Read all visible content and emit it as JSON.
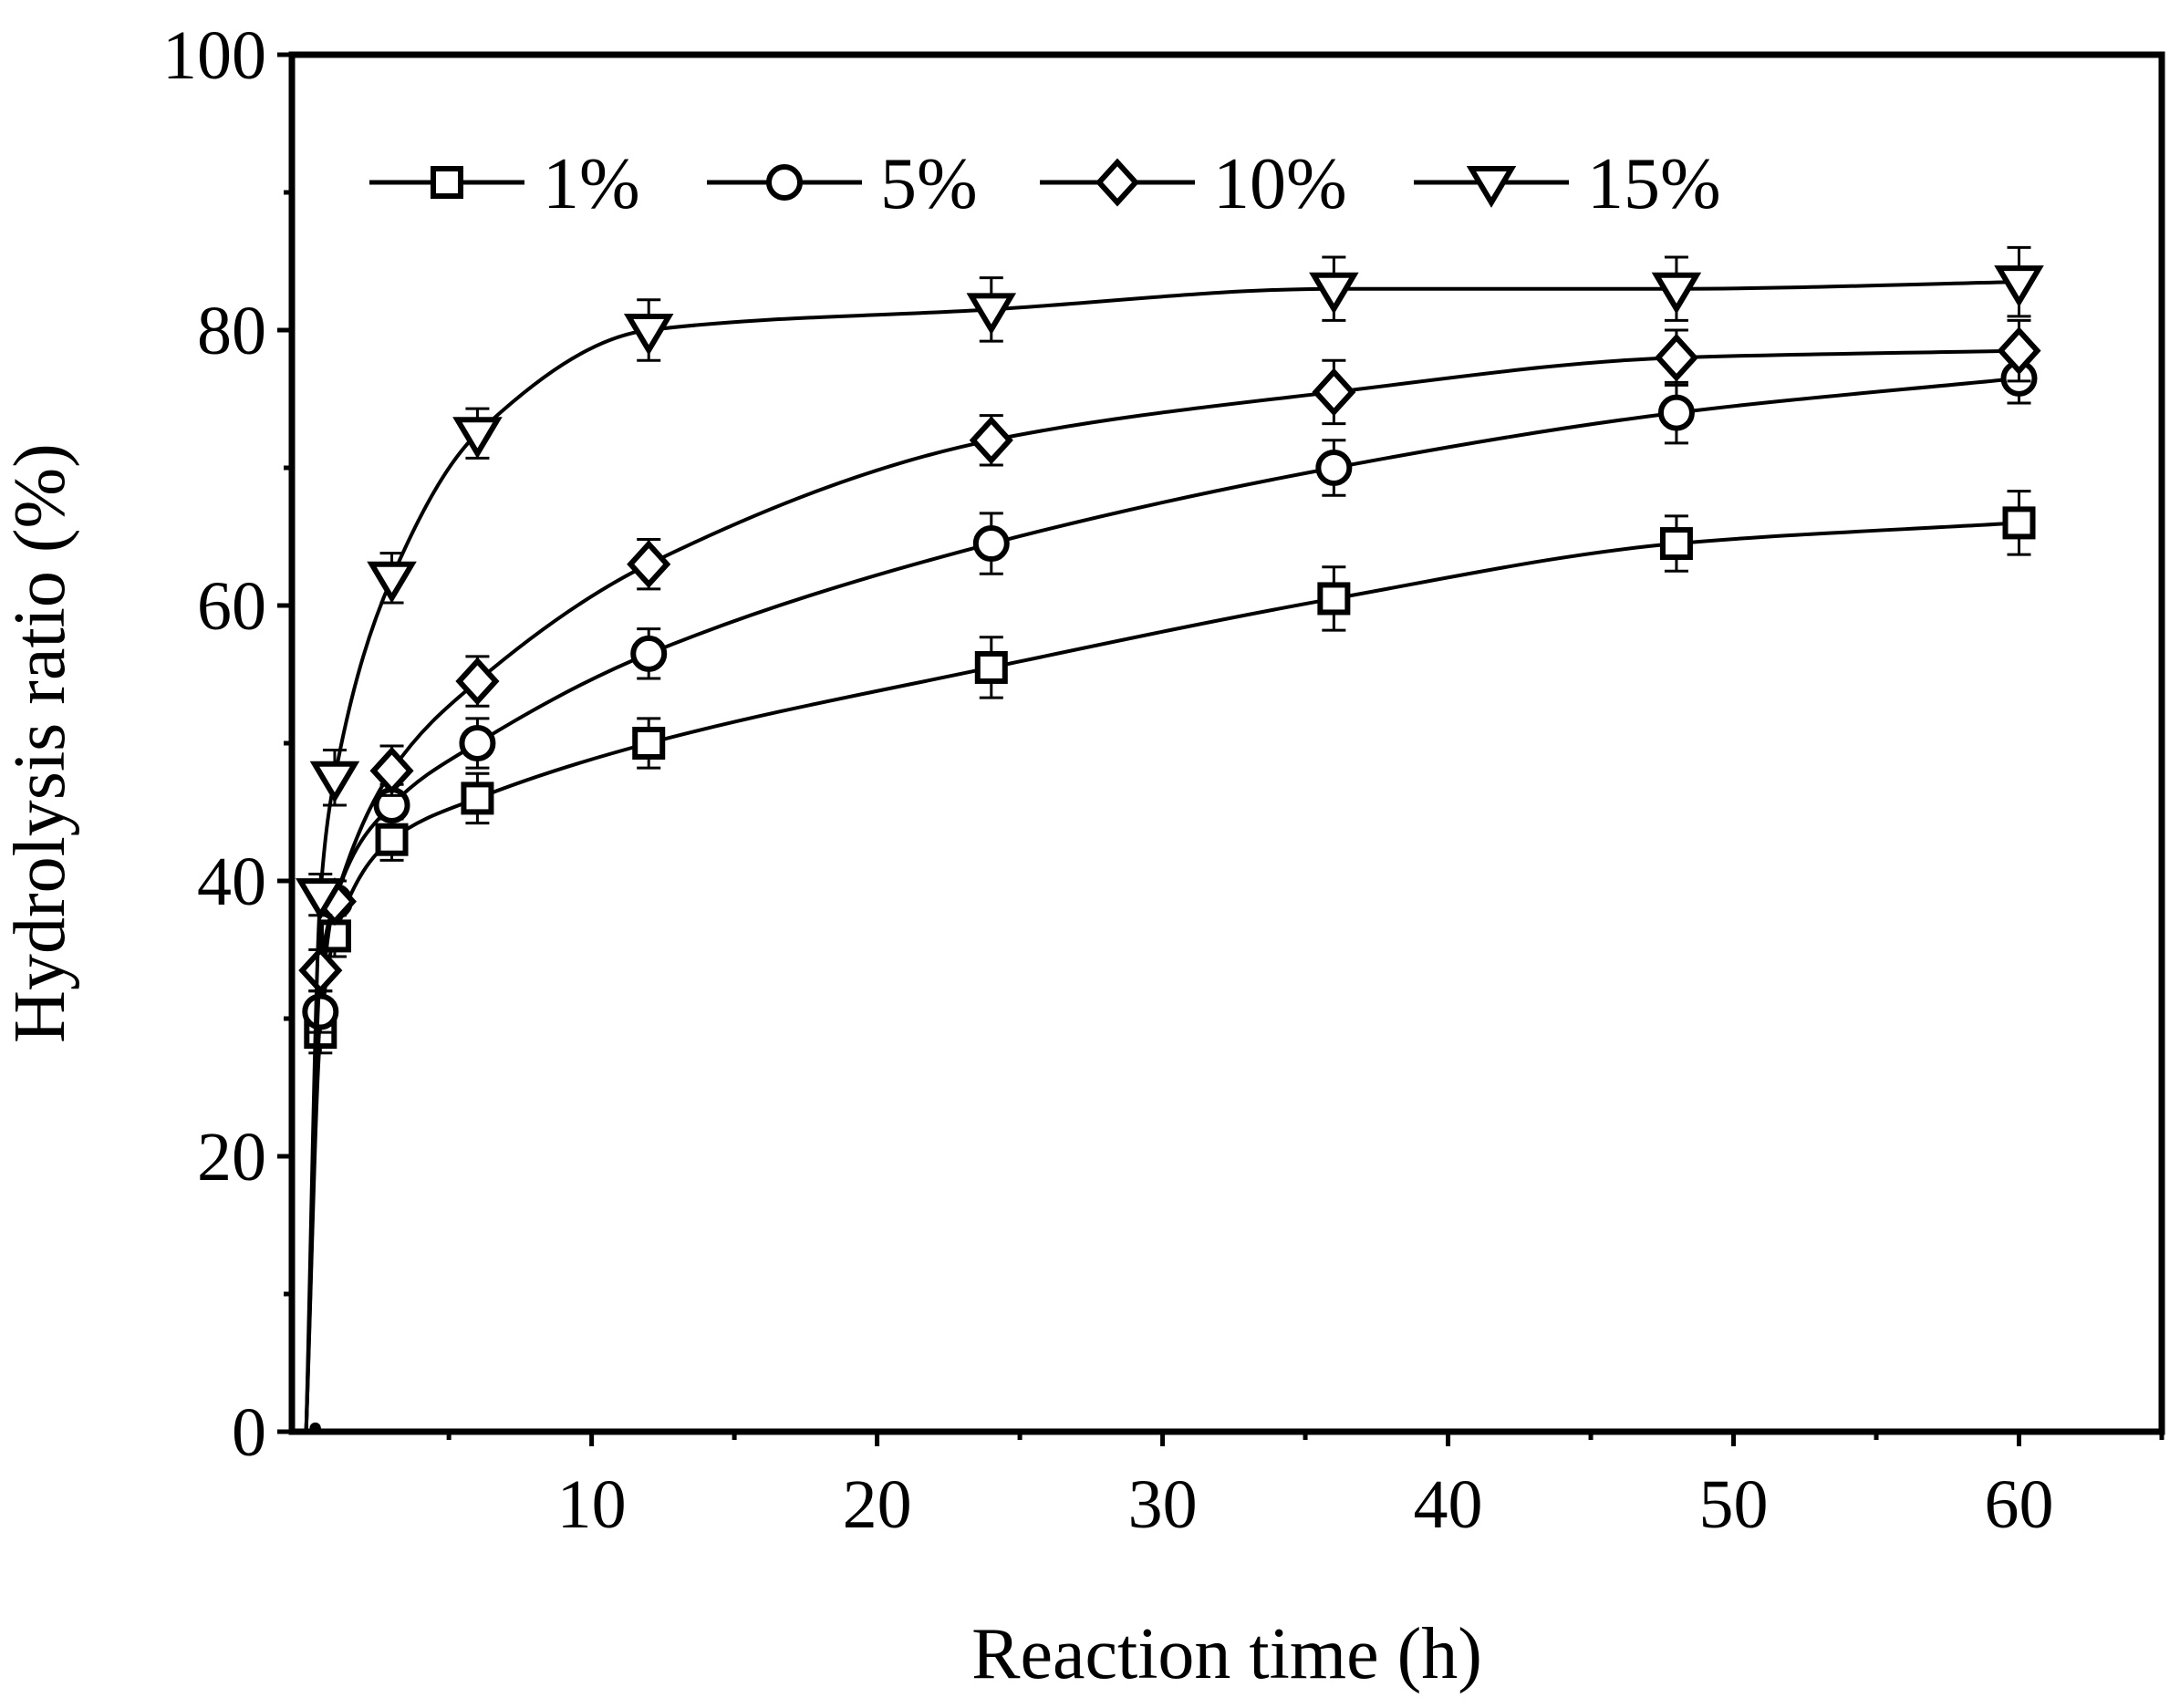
{
  "chart_data": {
    "type": "line",
    "title": "",
    "xlabel": "Reaction time (h)",
    "ylabel": "Hydrolysis ratio (%)",
    "xlim": [
      -0.5,
      65
    ],
    "ylim": [
      0,
      100
    ],
    "xticks": [
      10,
      20,
      30,
      40,
      50,
      60
    ],
    "yticks": [
      0,
      20,
      40,
      60,
      80,
      100
    ],
    "x": [
      0,
      0.5,
      1,
      3,
      6,
      12,
      24,
      36,
      48,
      60
    ],
    "legend_position": "top",
    "grid": false,
    "series": [
      {
        "name": "1%",
        "marker": "square",
        "values": [
          0,
          29,
          36,
          43,
          46,
          50,
          55.5,
          60.5,
          64.5,
          66
        ],
        "errors": [
          0,
          1.5,
          1.5,
          1.5,
          1.8,
          1.8,
          2.2,
          2.3,
          2.0,
          2.3
        ]
      },
      {
        "name": "5%",
        "marker": "circle",
        "values": [
          0,
          30.5,
          38.5,
          45.5,
          50,
          56.5,
          64.5,
          70,
          74,
          76.5
        ],
        "errors": [
          0,
          1.5,
          1.5,
          1.5,
          1.8,
          1.8,
          2.2,
          2.0,
          2.2,
          1.8
        ]
      },
      {
        "name": "10%",
        "marker": "diamond",
        "values": [
          0,
          33.5,
          38.5,
          48,
          54.5,
          63,
          72,
          75.5,
          78,
          78.5
        ],
        "errors": [
          0,
          1.5,
          1.5,
          1.8,
          1.8,
          1.8,
          1.8,
          2.3,
          2.0,
          2.2
        ]
      },
      {
        "name": "15%",
        "marker": "triangle-down",
        "values": [
          0,
          39,
          47.5,
          62,
          72.5,
          80,
          81.5,
          83,
          83,
          83.5
        ],
        "errors": [
          0,
          1.5,
          2.0,
          1.8,
          1.8,
          2.2,
          2.3,
          2.3,
          2.3,
          2.5
        ]
      }
    ]
  }
}
